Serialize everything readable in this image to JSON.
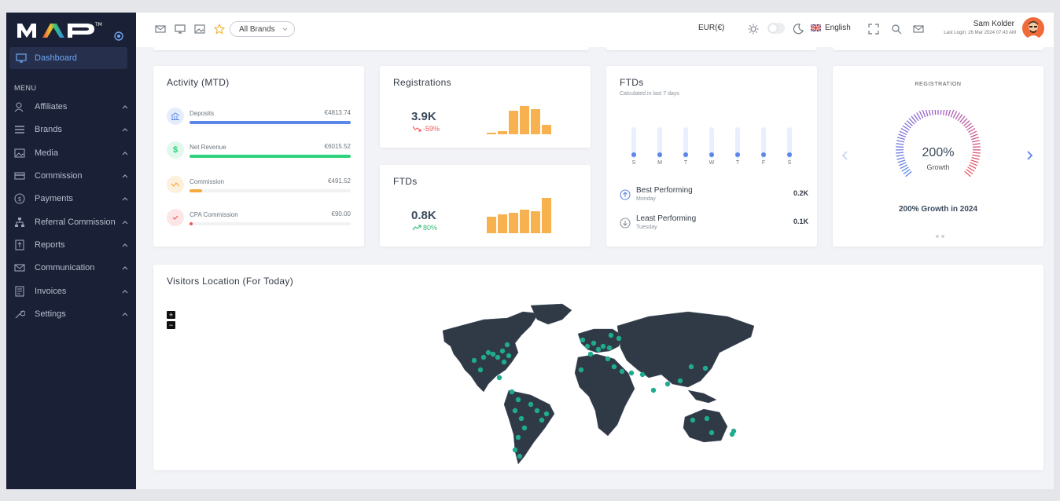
{
  "app": {
    "brand": "MAP"
  },
  "sidebar": {
    "active": {
      "label": "Dashboard",
      "icon": "monitor-icon"
    },
    "menu_title": "MENU",
    "items": [
      {
        "label": "Affiliates",
        "icon": "users-icon"
      },
      {
        "label": "Brands",
        "icon": "layers-icon"
      },
      {
        "label": "Media",
        "icon": "image-icon"
      },
      {
        "label": "Commission",
        "icon": "card-icon"
      },
      {
        "label": "Payments",
        "icon": "dollar-icon"
      },
      {
        "label": "Referral Commission",
        "icon": "network-icon"
      },
      {
        "label": "Reports",
        "icon": "report-icon"
      },
      {
        "label": "Communication",
        "icon": "mail-icon"
      },
      {
        "label": "Invoices",
        "icon": "invoice-icon"
      },
      {
        "label": "Settings",
        "icon": "wrench-icon"
      }
    ]
  },
  "topbar": {
    "brand_select": "All Brands",
    "currency": "EUR(€)",
    "language": "English",
    "user_name": "Sam Kolder",
    "last_login": "Last Login: 26 Mar 2024 07:43 AM"
  },
  "activity": {
    "title": "Activity (MTD)",
    "rows": [
      {
        "label": "Deposits",
        "value": "€4813.74",
        "percent": 100,
        "color": "#5b87e8",
        "bg": "#e5edfc",
        "icon": "bank-icon"
      },
      {
        "label": "Net Revenue",
        "value": "€6015.52",
        "percent": 100,
        "color": "#2fd27b",
        "bg": "#e1f8ec",
        "icon": "dollar-icon"
      },
      {
        "label": "Commission",
        "value": "€491.52",
        "percent": 8,
        "color": "#f7a940",
        "bg": "#fdf0dc",
        "icon": "wave-icon"
      },
      {
        "label": "CPA Commission",
        "value": "€90.00",
        "percent": 2,
        "color": "#ee5a5a",
        "bg": "#fde6e6",
        "icon": "check-icon"
      }
    ]
  },
  "registrations": {
    "title": "Registrations",
    "value": "3.9K",
    "change": "-59%",
    "bars": [
      4,
      8,
      62,
      76,
      66,
      26
    ],
    "color": "#f7b24f"
  },
  "ftds_small": {
    "title": "FTDs",
    "value": "0.8K",
    "change": "80%",
    "bars": [
      44,
      50,
      54,
      62,
      58,
      94
    ],
    "color": "#f7b24f"
  },
  "ftds": {
    "title": "FTDs",
    "subtitle": "Calculated in last 7 days",
    "days": [
      "S",
      "M",
      "T",
      "W",
      "T",
      "F",
      "S"
    ],
    "best": {
      "label": "Best Performing",
      "day": "Monday",
      "value": "0.2K"
    },
    "least": {
      "label": "Least Performing",
      "day": "Tuesday",
      "value": "0.1K"
    }
  },
  "growth": {
    "title": "REGISTRATION",
    "value": "200%",
    "label": "Growth",
    "caption": "200% Growth in 2024"
  },
  "visitors": {
    "title": "Visitors Location (For Today)",
    "zoom_in": "+",
    "zoom_out": "−"
  }
}
